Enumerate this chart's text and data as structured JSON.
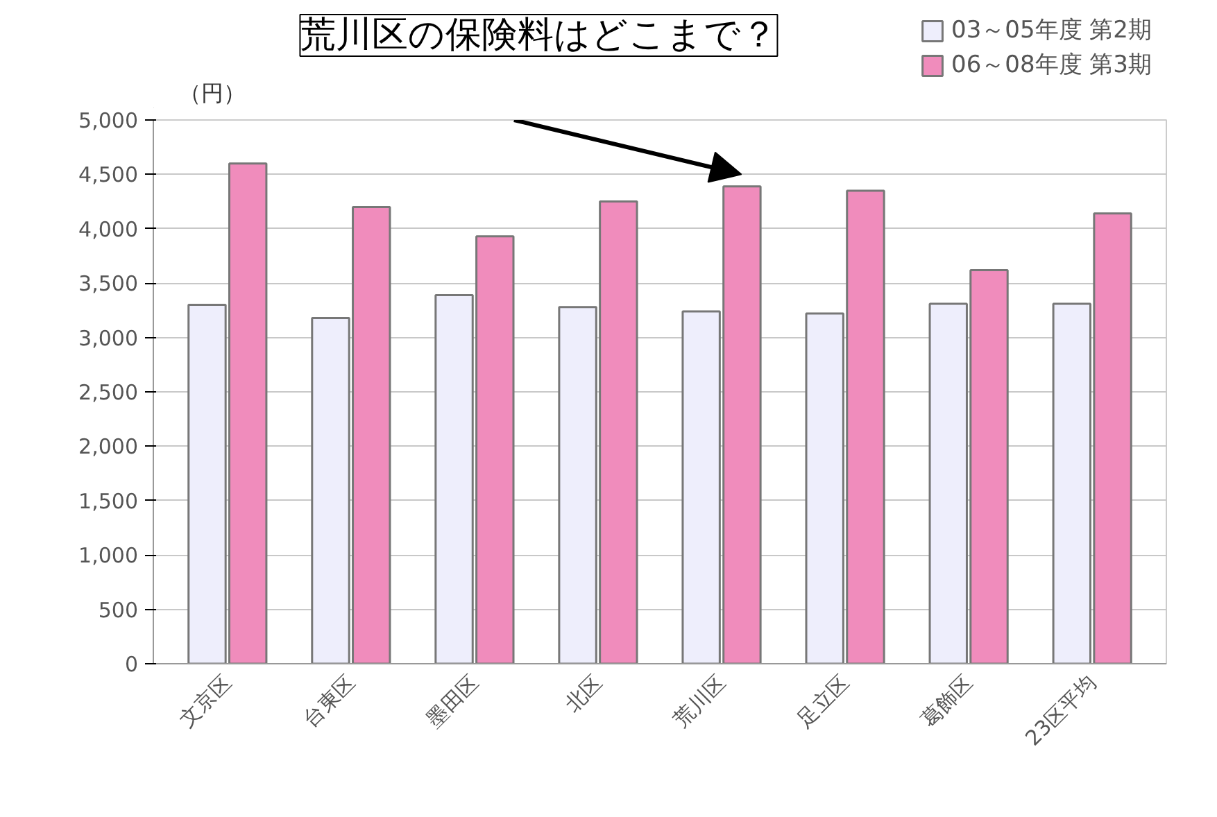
{
  "chart_data": {
    "type": "bar",
    "ylabel": "（円）",
    "categories": [
      "文京区",
      "台東区",
      "墨田区",
      "北区",
      "荒川区",
      "足立区",
      "葛飾区",
      "23区平均"
    ],
    "series": [
      {
        "name": "03～05年度 第2期",
        "color": "#eeeefc",
        "values": [
          3300,
          3180,
          3390,
          3280,
          3240,
          3220,
          3310,
          3310
        ]
      },
      {
        "name": "06～08年度 第3期",
        "color": "#f08cbc",
        "values": [
          4600,
          4200,
          3930,
          4250,
          4390,
          4350,
          3620,
          4140
        ]
      }
    ],
    "annotations": [
      "荒川区の保険料はどこまで？"
    ],
    "ylim": [
      0,
      5000
    ],
    "yticks": [
      {
        "value": 0,
        "label": "0"
      },
      {
        "value": 500,
        "label": "500"
      },
      {
        "value": 1000,
        "label": "1,000"
      },
      {
        "value": 1500,
        "label": "1,500"
      },
      {
        "value": 2000,
        "label": "2,000"
      },
      {
        "value": 2500,
        "label": "2,500"
      },
      {
        "value": 3000,
        "label": "3,000"
      },
      {
        "value": 3500,
        "label": "3,500"
      },
      {
        "value": 4000,
        "label": "4,000"
      },
      {
        "value": 4500,
        "label": "4,500"
      },
      {
        "value": 5000,
        "label": "5,000"
      }
    ],
    "grid": "y",
    "legend": "top right"
  }
}
